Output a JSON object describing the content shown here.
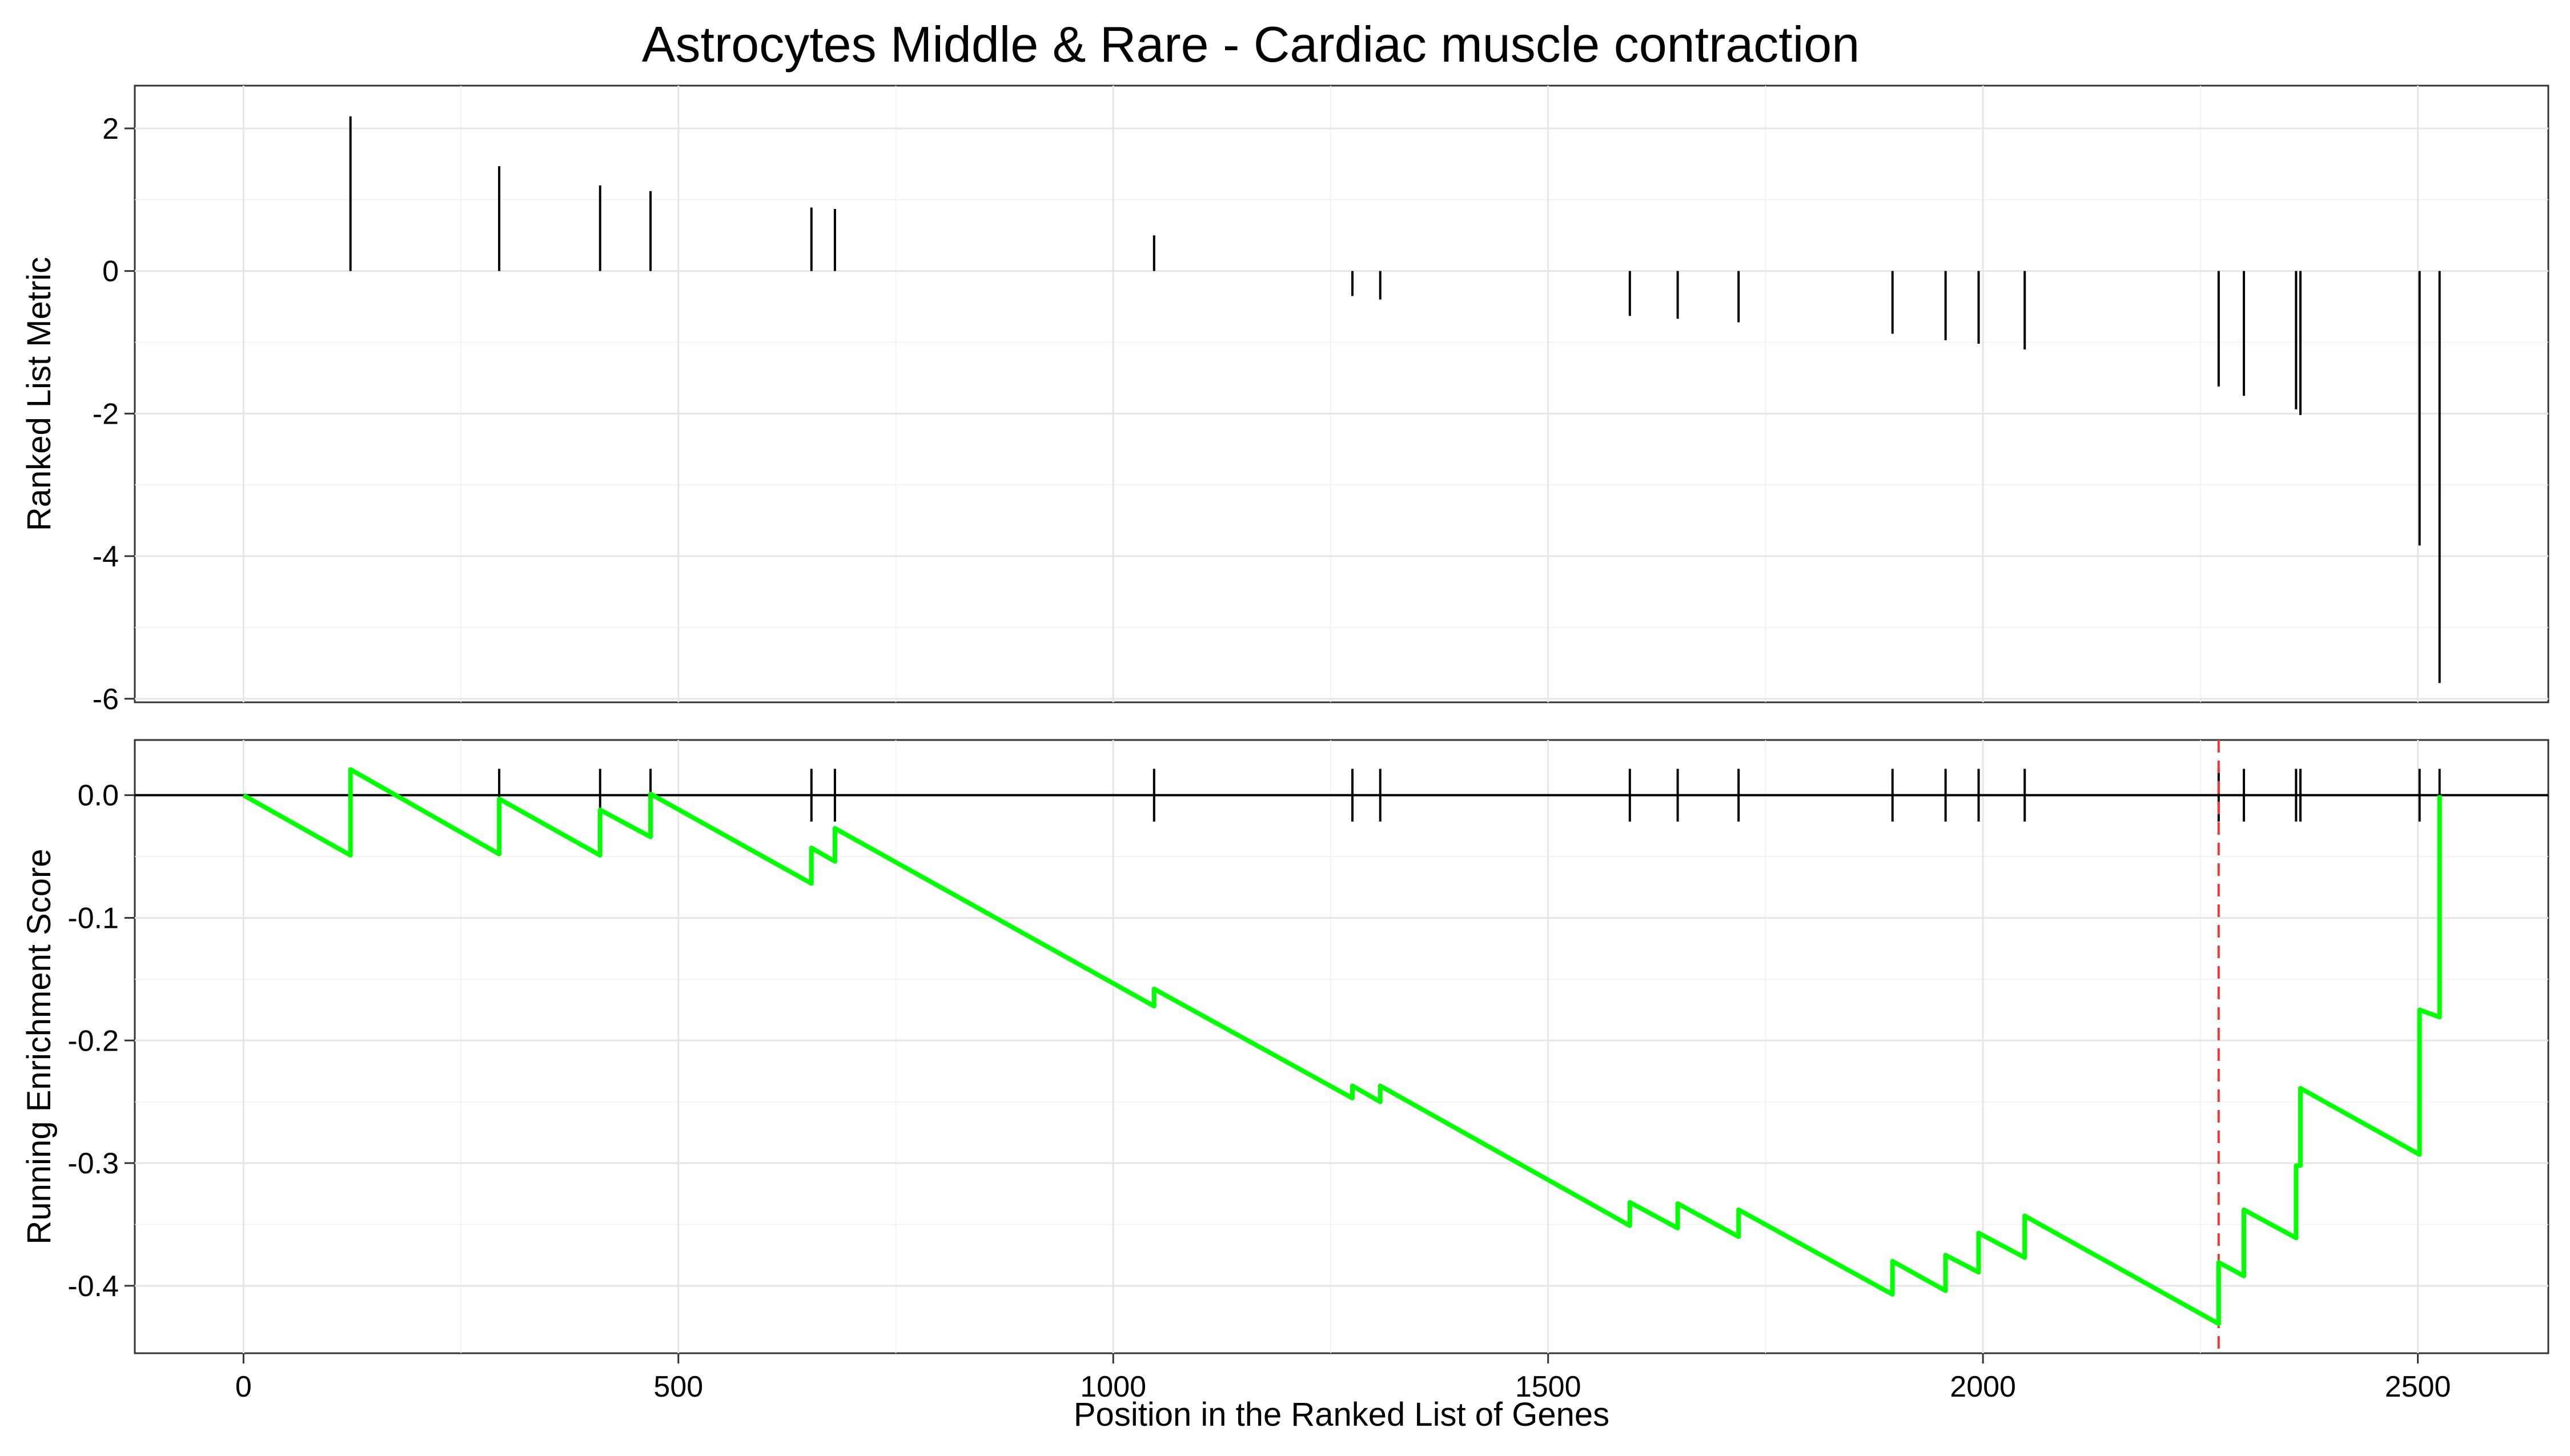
{
  "chart_data": {
    "type": "gsea",
    "title": "Astrocytes Middle & Rare - Cardiac muscle contraction",
    "xlabel": "Position in the Ranked List of Genes",
    "x_ticks": [
      0,
      500,
      1000,
      1500,
      2000,
      2500
    ],
    "xlim": [
      -125,
      2650
    ],
    "hits": [
      {
        "position": 123,
        "metric": 2.17
      },
      {
        "position": 294,
        "metric": 1.47
      },
      {
        "position": 410,
        "metric": 1.2
      },
      {
        "position": 468,
        "metric": 1.12
      },
      {
        "position": 653,
        "metric": 0.89
      },
      {
        "position": 680,
        "metric": 0.87
      },
      {
        "position": 1047,
        "metric": 0.5
      },
      {
        "position": 1275,
        "metric": -0.35
      },
      {
        "position": 1307,
        "metric": -0.4
      },
      {
        "position": 1594,
        "metric": -0.63
      },
      {
        "position": 1649,
        "metric": -0.67
      },
      {
        "position": 1719,
        "metric": -0.72
      },
      {
        "position": 1896,
        "metric": -0.88
      },
      {
        "position": 1957,
        "metric": -0.97
      },
      {
        "position": 1995,
        "metric": -1.02
      },
      {
        "position": 2048,
        "metric": -1.1
      },
      {
        "position": 2271,
        "metric": -1.62
      },
      {
        "position": 2300,
        "metric": -1.75
      },
      {
        "position": 2360,
        "metric": -1.94
      },
      {
        "position": 2365,
        "metric": -2.02
      },
      {
        "position": 2502,
        "metric": -3.85
      },
      {
        "position": 2525,
        "metric": -5.78
      }
    ],
    "panels": [
      {
        "name": "ranked_metric",
        "ylabel": "Ranked List Metric",
        "ylim": [
          -6.05,
          2.6
        ],
        "y_ticks": [
          2,
          0,
          -2,
          -4,
          -6
        ],
        "y_tick_labels": [
          "2",
          "0",
          "-2",
          "-4",
          "-6"
        ]
      },
      {
        "name": "running_es",
        "ylabel": "Running Enrichment Score",
        "ylim": [
          -0.455,
          0.045
        ],
        "y_ticks": [
          0.0,
          -0.1,
          -0.2,
          -0.3,
          -0.4
        ],
        "y_tick_labels": [
          "0.0",
          "-0.1",
          "-0.2",
          "-0.3",
          "-0.4"
        ]
      }
    ],
    "running_es": [
      [
        0,
        0.0
      ],
      [
        123,
        -0.049
      ],
      [
        123,
        0.021
      ],
      [
        294,
        -0.048
      ],
      [
        294,
        -0.003
      ],
      [
        410,
        -0.049
      ],
      [
        410,
        -0.012
      ],
      [
        468,
        -0.034
      ],
      [
        468,
        0.001
      ],
      [
        653,
        -0.072
      ],
      [
        653,
        -0.043
      ],
      [
        680,
        -0.054
      ],
      [
        680,
        -0.027
      ],
      [
        1047,
        -0.172
      ],
      [
        1047,
        -0.158
      ],
      [
        1275,
        -0.247
      ],
      [
        1275,
        -0.237
      ],
      [
        1307,
        -0.25
      ],
      [
        1307,
        -0.237
      ],
      [
        1594,
        -0.351
      ],
      [
        1594,
        -0.332
      ],
      [
        1649,
        -0.353
      ],
      [
        1649,
        -0.333
      ],
      [
        1719,
        -0.36
      ],
      [
        1719,
        -0.338
      ],
      [
        1896,
        -0.407
      ],
      [
        1896,
        -0.38
      ],
      [
        1957,
        -0.404
      ],
      [
        1957,
        -0.375
      ],
      [
        1995,
        -0.389
      ],
      [
        1995,
        -0.357
      ],
      [
        2048,
        -0.377
      ],
      [
        2048,
        -0.343
      ],
      [
        2271,
        -0.431
      ],
      [
        2271,
        -0.381
      ],
      [
        2300,
        -0.392
      ],
      [
        2300,
        -0.338
      ],
      [
        2360,
        -0.361
      ],
      [
        2360,
        -0.302
      ],
      [
        2365,
        -0.302
      ],
      [
        2365,
        -0.239
      ],
      [
        2502,
        -0.293
      ],
      [
        2502,
        -0.175
      ],
      [
        2525,
        -0.181
      ],
      [
        2525,
        0.0
      ]
    ],
    "peak_position": 2271,
    "enrichment_score": -0.431,
    "colors": {
      "running_es": "#00ff00",
      "peak_line": "#ff3333",
      "hit_segments": "#000000"
    },
    "grid": true
  }
}
